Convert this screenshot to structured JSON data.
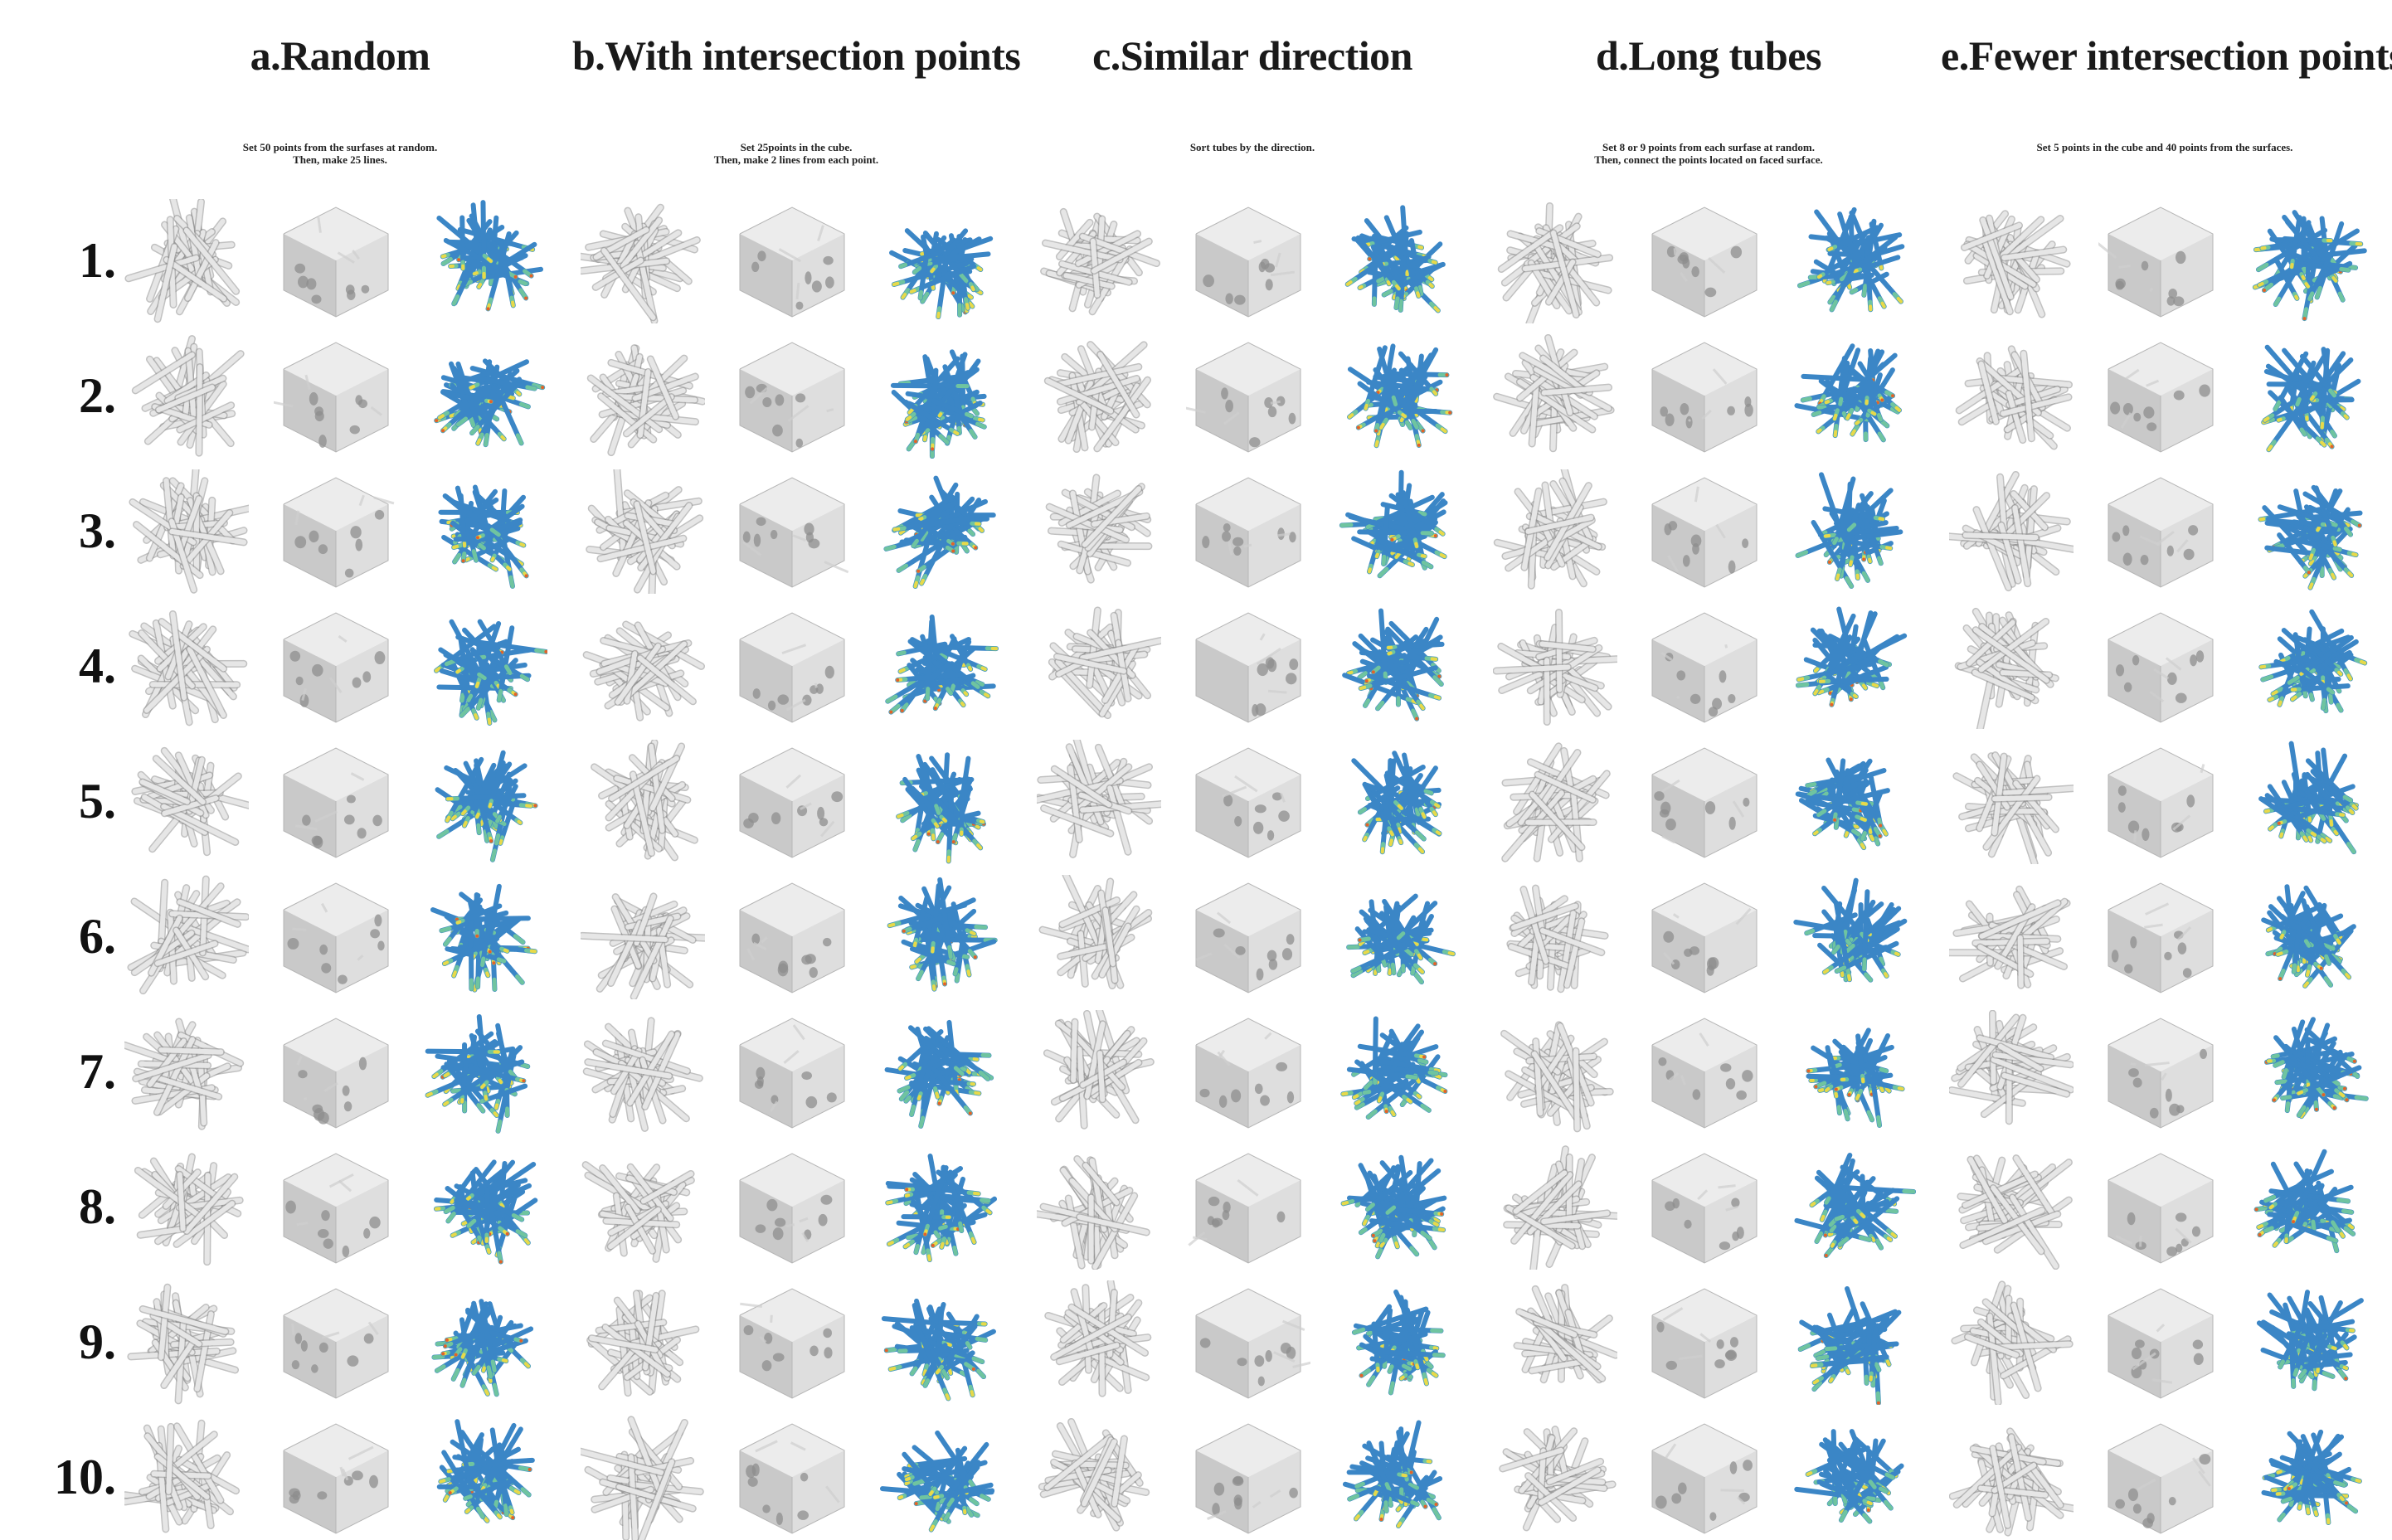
{
  "columns": [
    {
      "id": "a",
      "title": "a.Random",
      "note": [
        "Set 50 points from the surfases at random.",
        "Then, make 25 lines."
      ]
    },
    {
      "id": "b",
      "title": "b.With intersection points",
      "note": [
        "Set 25points in the cube.",
        "Then, make 2 lines from each point."
      ]
    },
    {
      "id": "c",
      "title": "c.Similar direction",
      "note": [
        "Sort tubes by the direction."
      ]
    },
    {
      "id": "d",
      "title": "d.Long tubes",
      "note": [
        "Set 8 or 9 points from each surfase at random.",
        "Then, connect the points located on faced surface."
      ]
    },
    {
      "id": "e",
      "title": "e.Fewer intersection points",
      "note": [
        "Set 5 points in the cube and 40 points from the surfaces."
      ]
    }
  ],
  "rows": [
    "1.",
    "2.",
    "3.",
    "4.",
    "5.",
    "6.",
    "7.",
    "8.",
    "9.",
    "10."
  ],
  "thumbnail_kinds": [
    "tube-network",
    "cube-solid",
    "stress-colormap"
  ],
  "colors": {
    "tube_light": "#e6e6e6",
    "tube_edge": "#8f8f8f",
    "cube_top": "#ececec",
    "cube_left": "#c9c9c9",
    "cube_right": "#dedede",
    "stress_base": "#3b86c6",
    "stress_mid": "#6fc4a0",
    "stress_hi": "#e8d94a",
    "stress_peak": "#e3612a"
  }
}
